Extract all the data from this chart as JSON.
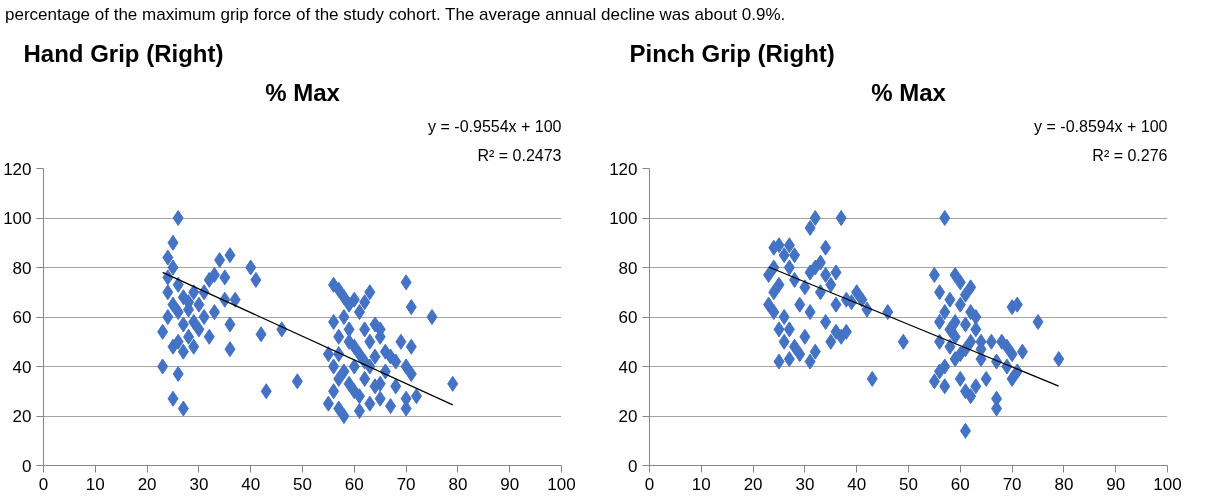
{
  "chart_data": [
    {
      "type": "scatter",
      "title": "Hand Grip (Right)",
      "subtitle": "% Max",
      "annotations": [
        "percentage of the maximum grip force of the study cohort. The average annual decline was about 0.9%.",
        "y = -0.9554x + 100",
        "R² = 0.2473"
      ],
      "marker": "diamond",
      "grid": "y",
      "xlim": [
        0,
        100
      ],
      "xticks": [
        0,
        10,
        20,
        30,
        40,
        50,
        60,
        70,
        80,
        90,
        100
      ],
      "ylim": [
        0,
        120
      ],
      "yticks": [
        0,
        20,
        40,
        60,
        80,
        100,
        120
      ],
      "series": [
        {
          "color": "#4472c4",
          "x": [
            26,
            25,
            24,
            25,
            24,
            24,
            26,
            27,
            25,
            26,
            28,
            30,
            29,
            32,
            33,
            34,
            36,
            35,
            37,
            35,
            40,
            41,
            31,
            30,
            32,
            29,
            27,
            26,
            25,
            23,
            28,
            33,
            31,
            29,
            27,
            23,
            26,
            25,
            27,
            36,
            36,
            42,
            43,
            46,
            49,
            28,
            24,
            56,
            57,
            58,
            60,
            59,
            61,
            63,
            62,
            64,
            65,
            58,
            56,
            57,
            59,
            60,
            61,
            62,
            63,
            64,
            66,
            67,
            68,
            69,
            70,
            71,
            75,
            79,
            71,
            70,
            71,
            70,
            72,
            70,
            67,
            65,
            63,
            61,
            60,
            58,
            57,
            55,
            56,
            57,
            58,
            59,
            60,
            62,
            61,
            64,
            63,
            65,
            66,
            55,
            56,
            57,
            59,
            62,
            68,
            65
          ],
          "values": [
            100,
            90,
            84,
            80,
            76,
            70,
            73,
            68,
            65,
            62,
            66,
            65,
            70,
            75,
            77,
            83,
            85,
            76,
            67,
            67,
            80,
            75,
            60,
            55,
            52,
            48,
            46,
            50,
            48,
            54,
            52,
            62,
            70,
            58,
            57,
            40,
            37,
            27,
            23,
            57,
            47,
            53,
            30,
            55,
            34,
            63,
            60,
            73,
            71,
            68,
            67,
            65,
            62,
            70,
            66,
            57,
            55,
            60,
            58,
            52,
            50,
            48,
            45,
            42,
            40,
            44,
            46,
            44,
            42,
            50,
            74,
            64,
            60,
            33,
            48,
            40,
            37,
            27,
            28,
            23,
            24,
            27,
            25,
            22,
            30,
            20,
            23,
            25,
            30,
            35,
            38,
            33,
            40,
            35,
            28,
            32,
            50,
            52,
            38,
            45,
            40,
            45,
            55,
            55,
            32,
            33
          ]
        },
        {
          "type": "line",
          "marker": "none",
          "color": "#000000",
          "x": [
            23,
            79
          ],
          "values": [
            78,
            24.5
          ]
        }
      ]
    },
    {
      "type": "scatter",
      "title": "Pinch Grip (Right)",
      "subtitle": "% Max",
      "annotations": [
        "y = -0.8594x + 100",
        "R² = 0.276"
      ],
      "marker": "diamond",
      "grid": "y",
      "xlim": [
        0,
        100
      ],
      "xticks": [
        0,
        10,
        20,
        30,
        40,
        50,
        60,
        70,
        80,
        90,
        100
      ],
      "ylim": [
        0,
        120
      ],
      "yticks": [
        0,
        20,
        40,
        60,
        80,
        100,
        120
      ],
      "series": [
        {
          "color": "#4472c4",
          "x": [
            24,
            25,
            27,
            26,
            28,
            23,
            24,
            27,
            25,
            24,
            23,
            24,
            26,
            25,
            27,
            26,
            28,
            29,
            25,
            27,
            31,
            32,
            30,
            31,
            30,
            31,
            32,
            33,
            31,
            32,
            34,
            37,
            35,
            34,
            36,
            33,
            36,
            38,
            40,
            39,
            41,
            42,
            35,
            34,
            37,
            36,
            38,
            43,
            46,
            49,
            28,
            29,
            57,
            55,
            59,
            56,
            60,
            58,
            62,
            61,
            60,
            62,
            57,
            56,
            59,
            58,
            61,
            63,
            64,
            66,
            68,
            69,
            70,
            72,
            70,
            71,
            75,
            79,
            70,
            71,
            69,
            67,
            64,
            62,
            61,
            60,
            59,
            57,
            56,
            55,
            57,
            60,
            61,
            62,
            63,
            65,
            67,
            67,
            61,
            58,
            56,
            59,
            63,
            64
          ],
          "values": [
            88,
            89,
            89,
            85,
            85,
            77,
            80,
            80,
            73,
            70,
            65,
            62,
            60,
            55,
            55,
            50,
            48,
            45,
            42,
            43,
            42,
            46,
            52,
            62,
            72,
            78,
            80,
            82,
            96,
            100,
            88,
            100,
            73,
            77,
            78,
            70,
            65,
            67,
            70,
            66,
            67,
            63,
            50,
            58,
            52,
            54,
            54,
            35,
            62,
            50,
            75,
            65,
            100,
            77,
            77,
            70,
            74,
            67,
            72,
            69,
            65,
            62,
            62,
            58,
            58,
            55,
            57,
            55,
            50,
            50,
            50,
            48,
            45,
            46,
            64,
            65,
            58,
            43,
            35,
            38,
            40,
            42,
            47,
            50,
            47,
            45,
            43,
            40,
            38,
            34,
            32,
            35,
            30,
            28,
            32,
            35,
            27,
            23,
            14,
            48,
            50,
            52,
            60,
            43
          ]
        },
        {
          "type": "line",
          "marker": "none",
          "color": "#000000",
          "x": [
            23,
            79
          ],
          "values": [
            80.2,
            32.1
          ]
        }
      ]
    }
  ]
}
